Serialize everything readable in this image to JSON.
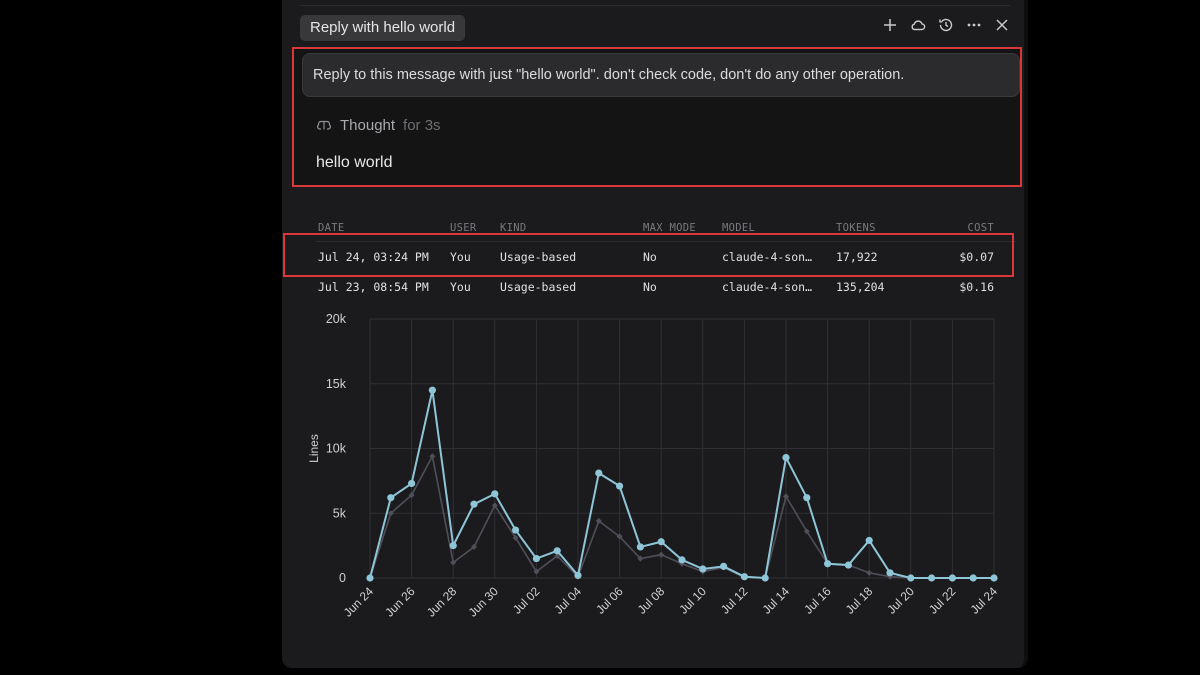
{
  "chat": {
    "title": "Reply with hello world",
    "user_message": "Reply to this message with just \"hello world\". don't check code, don't do any other operation.",
    "thought_label": "Thought",
    "thought_duration": "for 3s",
    "response": "hello world"
  },
  "toolbar": {
    "icons": [
      "plus-icon",
      "cloud-icon",
      "history-icon",
      "more-icon",
      "close-icon"
    ]
  },
  "usage_table": {
    "headers": [
      "DATE",
      "USER",
      "KIND",
      "MAX MODE",
      "MODEL",
      "TOKENS",
      "COST"
    ],
    "rows": [
      {
        "date": "Jul 24, 03:24 PM",
        "user": "You",
        "kind": "Usage-based",
        "max_mode": "No",
        "model": "claude-4-son…",
        "tokens": "17,922",
        "cost": "$0.07"
      },
      {
        "date": "Jul 23, 08:54 PM",
        "user": "You",
        "kind": "Usage-based",
        "max_mode": "No",
        "model": "claude-4-son…",
        "tokens": "135,204",
        "cost": "$0.16"
      }
    ]
  },
  "chart_data": {
    "type": "line",
    "ylabel": "Lines",
    "ylim": [
      0,
      20000
    ],
    "yticks": [
      0,
      5000,
      10000,
      15000,
      20000
    ],
    "ytick_labels": [
      "0",
      "5k",
      "10k",
      "15k",
      "20k"
    ],
    "x": [
      "Jun 24",
      "Jun 25",
      "Jun 26",
      "Jun 27",
      "Jun 28",
      "Jun 29",
      "Jun 30",
      "Jul 01",
      "Jul 02",
      "Jul 03",
      "Jul 04",
      "Jul 05",
      "Jul 06",
      "Jul 07",
      "Jul 08",
      "Jul 09",
      "Jul 10",
      "Jul 11",
      "Jul 12",
      "Jul 13",
      "Jul 14",
      "Jul 15",
      "Jul 16",
      "Jul 17",
      "Jul 18",
      "Jul 19",
      "Jul 20",
      "Jul 21",
      "Jul 22",
      "Jul 23",
      "Jul 24"
    ],
    "xtick_labels": [
      "Jun 24",
      "Jun 26",
      "Jun 28",
      "Jun 30",
      "Jul 02",
      "Jul 04",
      "Jul 06",
      "Jul 08",
      "Jul 10",
      "Jul 12",
      "Jul 14",
      "Jul 16",
      "Jul 18",
      "Jul 20",
      "Jul 22",
      "Jul 24"
    ],
    "series": [
      {
        "color": "#8ec6d8",
        "values": [
          0,
          6200,
          7300,
          14500,
          2500,
          5700,
          6500,
          3700,
          1500,
          2100,
          200,
          8100,
          7100,
          2400,
          2800,
          1400,
          700,
          900,
          100,
          0,
          9300,
          6200,
          1100,
          1000,
          2900,
          400,
          0,
          0,
          0,
          0,
          0
        ]
      },
      {
        "color": "#4f4f5a",
        "values": [
          0,
          5000,
          6400,
          9400,
          1200,
          2400,
          5600,
          3100,
          500,
          1700,
          100,
          4400,
          3200,
          1500,
          1800,
          1100,
          500,
          800,
          50,
          0,
          6300,
          3600,
          1100,
          1000,
          400,
          100,
          0,
          0,
          0,
          0,
          0
        ]
      }
    ],
    "grid": true,
    "legend": "none"
  },
  "colors": {
    "accent": "#8ec6d8",
    "highlight_border": "#d9383a"
  }
}
